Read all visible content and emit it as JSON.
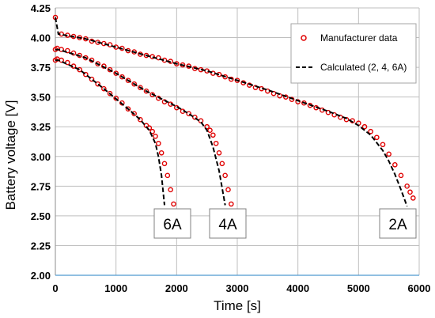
{
  "chart_data": {
    "type": "scatter",
    "xlabel": "Time [s]",
    "ylabel": "Battery voltage [V]",
    "xlim": [
      0,
      6000
    ],
    "ylim": [
      2.0,
      4.25
    ],
    "x_ticks": [
      0,
      1000,
      2000,
      3000,
      4000,
      5000,
      6000
    ],
    "y_ticks": [
      2.0,
      2.25,
      2.5,
      2.75,
      3.0,
      3.25,
      3.5,
      3.75,
      4.0,
      4.25
    ],
    "grid": true,
    "legend_position": "top-right",
    "legend": [
      {
        "label": "Manufacturer data",
        "marker": "circle",
        "color": "#e00000"
      },
      {
        "label": "Calculated (2, 4, 6A)",
        "style": "dashed",
        "color": "#000000"
      }
    ],
    "annotations": [
      "6A",
      "4A",
      "2A"
    ],
    "series": [
      {
        "name": "Manufacturer data",
        "kind": "markers",
        "color": "#e00000",
        "curves": [
          {
            "label": "2A",
            "x": [
              0,
              100,
              200,
              300,
              400,
              500,
              600,
              700,
              800,
              900,
              1000,
              1100,
              1200,
              1300,
              1400,
              1500,
              1600,
              1700,
              1800,
              1900,
              2000,
              2100,
              2200,
              2300,
              2400,
              2500,
              2600,
              2700,
              2800,
              2900,
              3000,
              3100,
              3200,
              3300,
              3400,
              3500,
              3600,
              3700,
              3800,
              3900,
              4000,
              4100,
              4200,
              4300,
              4400,
              4500,
              4600,
              4700,
              4800,
              4900,
              5000,
              5100,
              5200,
              5300,
              5400,
              5500,
              5600,
              5700,
              5800,
              5850,
              5900
            ],
            "y": [
              4.17,
              4.03,
              4.02,
              4.01,
              4.0,
              3.99,
              3.97,
              3.96,
              3.95,
              3.94,
              3.92,
              3.91,
              3.89,
              3.88,
              3.86,
              3.85,
              3.84,
              3.83,
              3.81,
              3.8,
              3.78,
              3.77,
              3.76,
              3.74,
              3.73,
              3.72,
              3.7,
              3.69,
              3.67,
              3.65,
              3.64,
              3.62,
              3.6,
              3.58,
              3.57,
              3.55,
              3.53,
              3.51,
              3.5,
              3.48,
              3.46,
              3.45,
              3.43,
              3.41,
              3.39,
              3.37,
              3.35,
              3.33,
              3.31,
              3.3,
              3.28,
              3.25,
              3.21,
              3.16,
              3.1,
              3.02,
              2.93,
              2.84,
              2.75,
              2.7,
              2.65
            ]
          },
          {
            "label": "4A",
            "x": [
              0,
              30,
              100,
              200,
              300,
              400,
              500,
              600,
              700,
              800,
              900,
              1000,
              1100,
              1200,
              1300,
              1400,
              1500,
              1600,
              1700,
              1800,
              1900,
              2000,
              2100,
              2200,
              2300,
              2400,
              2500,
              2550,
              2600,
              2650,
              2700,
              2750,
              2800,
              2850,
              2900
            ],
            "y": [
              3.9,
              3.91,
              3.9,
              3.89,
              3.87,
              3.85,
              3.83,
              3.81,
              3.78,
              3.76,
              3.73,
              3.7,
              3.67,
              3.64,
              3.61,
              3.58,
              3.55,
              3.52,
              3.49,
              3.46,
              3.44,
              3.41,
              3.38,
              3.36,
              3.33,
              3.3,
              3.25,
              3.22,
              3.18,
              3.11,
              3.03,
              2.94,
              2.84,
              2.72,
              2.6
            ]
          },
          {
            "label": "6A",
            "x": [
              0,
              30,
              100,
              200,
              300,
              400,
              500,
              600,
              700,
              800,
              900,
              1000,
              1100,
              1200,
              1300,
              1400,
              1500,
              1550,
              1600,
              1650,
              1700,
              1750,
              1800,
              1850,
              1900,
              1950
            ],
            "y": [
              3.81,
              3.82,
              3.81,
              3.79,
              3.76,
              3.73,
              3.69,
              3.65,
              3.61,
              3.57,
              3.53,
              3.49,
              3.45,
              3.4,
              3.36,
              3.31,
              3.26,
              3.24,
              3.21,
              3.17,
              3.11,
              3.03,
              2.94,
              2.84,
              2.72,
              2.6
            ]
          }
        ]
      },
      {
        "name": "Calculated (2, 4, 6A)",
        "kind": "dashed-line",
        "color": "#000000",
        "curves": [
          {
            "label": "2A",
            "x": [
              0,
              50,
              500,
              1000,
              1500,
              2000,
              2500,
              3000,
              3500,
              4000,
              4500,
              4800,
              5000,
              5200,
              5400,
              5500,
              5600,
              5700,
              5800
            ],
            "y": [
              4.17,
              4.03,
              3.99,
              3.92,
              3.85,
              3.78,
              3.72,
              3.64,
              3.56,
              3.47,
              3.38,
              3.32,
              3.26,
              3.18,
              3.05,
              2.96,
              2.85,
              2.72,
              2.58
            ]
          },
          {
            "label": "4A",
            "x": [
              0,
              50,
              500,
              1000,
              1500,
              2000,
              2200,
              2400,
              2500,
              2600,
              2700,
              2800
            ],
            "y": [
              3.9,
              3.9,
              3.83,
              3.7,
              3.55,
              3.42,
              3.36,
              3.29,
              3.22,
              3.08,
              2.88,
              2.59
            ]
          },
          {
            "label": "6A",
            "x": [
              0,
              50,
              400,
              800,
              1200,
              1400,
              1550,
              1650,
              1700,
              1750,
              1800
            ],
            "y": [
              3.81,
              3.81,
              3.73,
              3.57,
              3.4,
              3.31,
              3.22,
              3.11,
              3.0,
              2.84,
              2.59
            ]
          }
        ]
      }
    ]
  }
}
